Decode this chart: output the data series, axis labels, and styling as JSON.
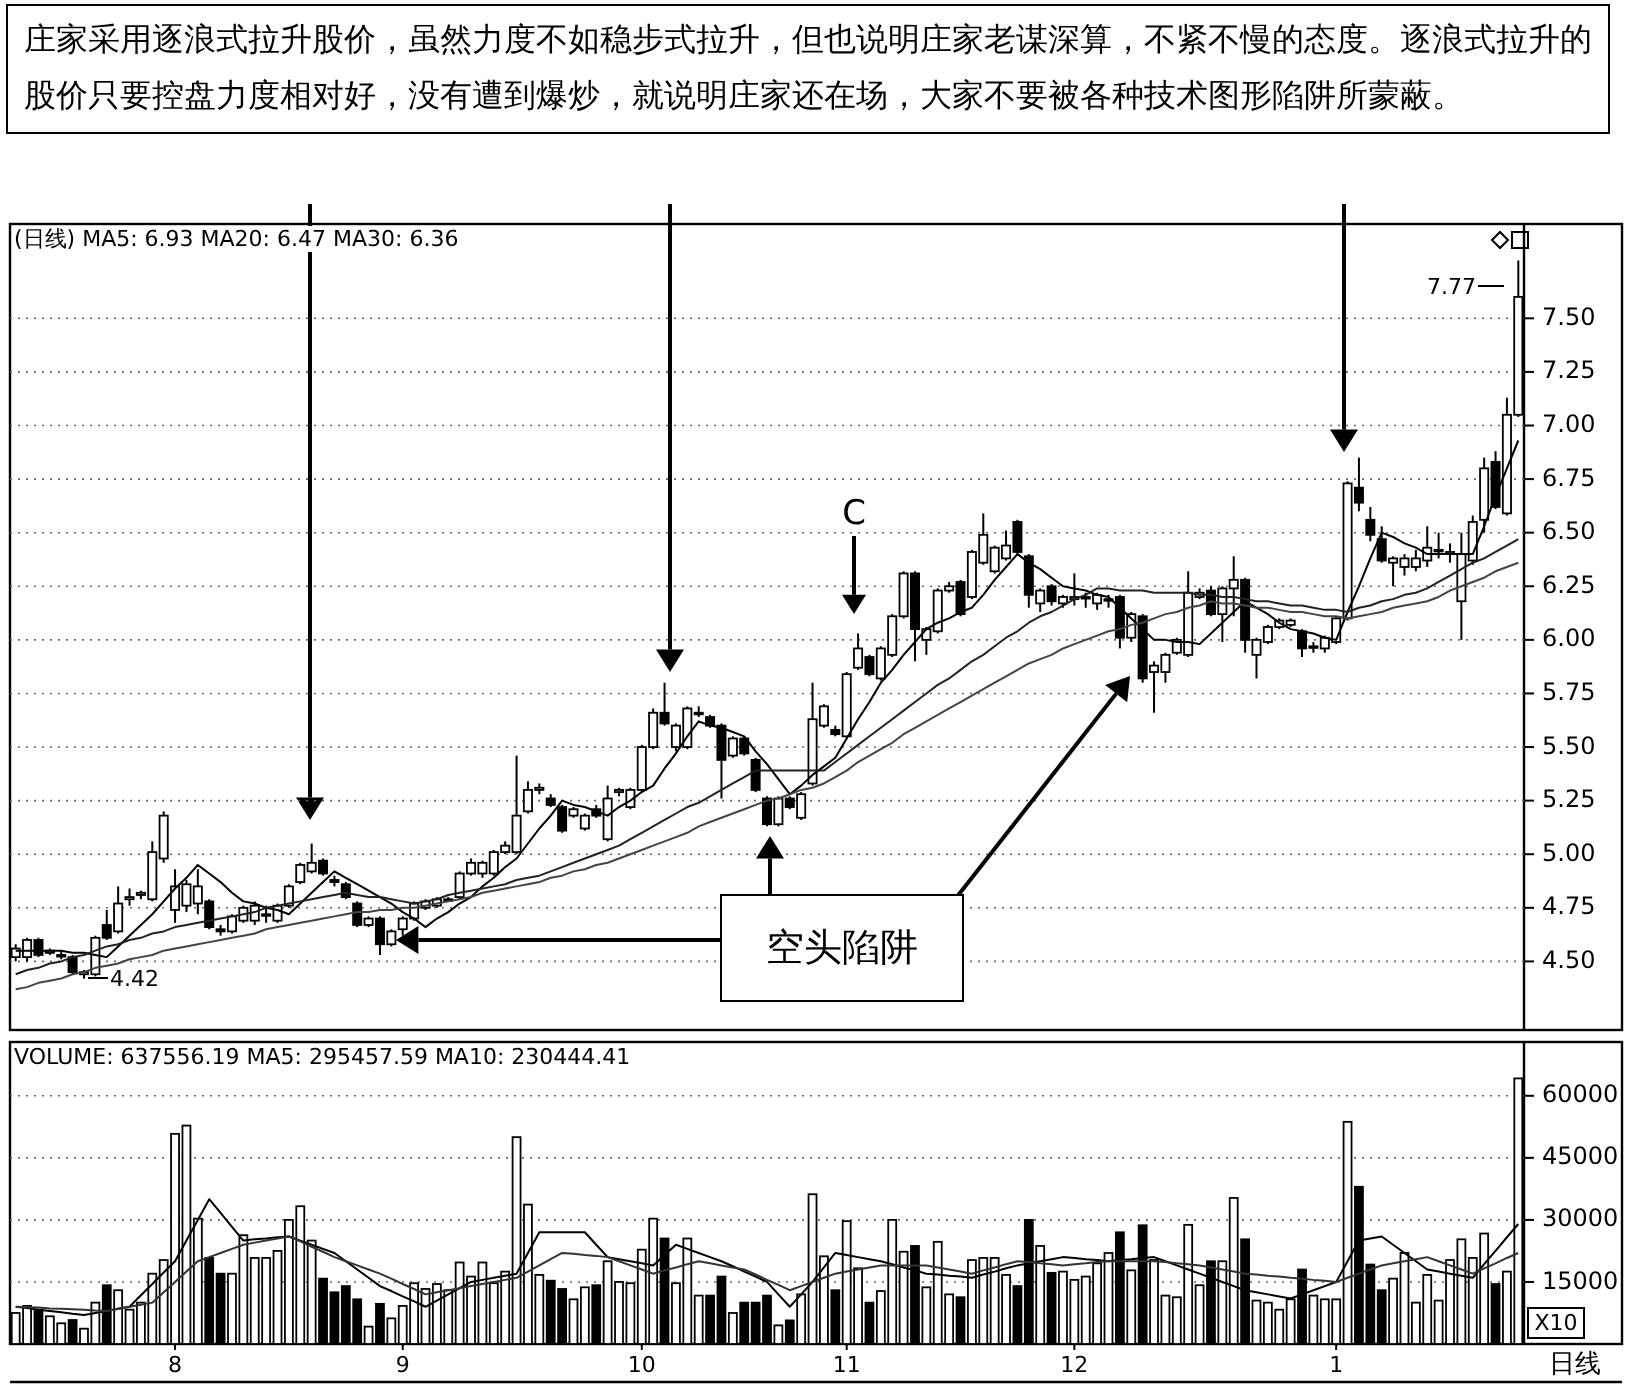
{
  "chart_data": [
    {
      "type": "candlestick",
      "title": "(日线) MA5: 6.93 MA20: 6.47 MA30: 6.36",
      "annotations": [
        "庄家采用逐浪式拉升股价，虽然力度不如稳步式拉升，但也说明庄家老谋深算，不紧不慢的态度。逐浪式拉升的股价只要控盘力度相对好，没有遭到爆炒，就说明庄家还在场，大家不要被各种技术图形陷阱所蒙蔽。",
        "C",
        "4.42",
        "7.77",
        "空头陷阱"
      ],
      "categories": [
        null,
        null,
        null,
        null,
        null,
        null,
        null,
        null,
        null,
        null,
        null,
        null,
        null,
        null,
        null,
        null,
        null,
        null,
        null,
        null,
        null,
        null,
        null,
        null,
        null,
        null,
        null,
        null,
        null,
        null,
        null,
        null,
        null,
        null,
        null,
        null,
        null,
        null,
        null,
        null,
        null,
        null,
        null,
        null,
        null,
        null,
        null,
        null,
        null,
        null,
        null,
        null,
        null,
        null,
        null,
        null,
        null,
        null,
        null,
        null,
        null,
        null,
        null,
        null,
        null,
        null,
        null,
        null,
        null,
        null,
        null,
        null,
        null,
        null,
        null,
        null,
        null,
        null,
        null,
        null,
        null,
        null,
        null,
        null,
        null,
        null,
        null,
        null,
        null,
        null,
        null,
        null,
        null,
        null,
        null,
        null,
        null,
        null,
        null,
        null,
        null,
        null,
        null,
        null,
        null,
        null,
        null,
        null,
        null,
        null,
        null,
        null,
        null,
        null,
        null,
        null,
        null,
        null,
        null,
        null,
        null,
        null,
        null,
        null,
        null,
        null,
        null,
        null,
        null,
        null,
        null,
        null,
        null
      ],
      "ohlc": [
        [
          4.52,
          4.58,
          4.5,
          4.56
        ],
        [
          4.52,
          4.61,
          4.5,
          4.6
        ],
        [
          4.6,
          4.61,
          4.52,
          4.53
        ],
        [
          4.54,
          4.56,
          4.53,
          4.55
        ],
        [
          4.53,
          4.55,
          4.51,
          4.53
        ],
        [
          4.52,
          4.53,
          4.44,
          4.45
        ],
        [
          4.44,
          4.46,
          4.42,
          4.45
        ],
        [
          4.44,
          4.62,
          4.43,
          4.61
        ],
        [
          4.67,
          4.74,
          4.6,
          4.61
        ],
        [
          4.64,
          4.85,
          4.63,
          4.77
        ],
        [
          4.79,
          4.84,
          4.76,
          4.8
        ],
        [
          4.81,
          4.83,
          4.79,
          4.82
        ],
        [
          4.79,
          5.06,
          4.78,
          5.01
        ],
        [
          4.98,
          5.2,
          4.96,
          5.18
        ],
        [
          4.74,
          4.93,
          4.68,
          4.85
        ],
        [
          4.76,
          4.88,
          4.73,
          4.86
        ],
        [
          4.77,
          4.93,
          4.72,
          4.85
        ],
        [
          4.78,
          4.79,
          4.65,
          4.66
        ],
        [
          4.65,
          4.67,
          4.62,
          4.64
        ],
        [
          4.64,
          4.72,
          4.63,
          4.71
        ],
        [
          4.69,
          4.76,
          4.68,
          4.75
        ],
        [
          4.69,
          4.78,
          4.67,
          4.76
        ],
        [
          4.72,
          4.76,
          4.68,
          4.72
        ],
        [
          4.69,
          4.77,
          4.68,
          4.76
        ],
        [
          4.76,
          4.86,
          4.75,
          4.85
        ],
        [
          4.87,
          4.96,
          4.86,
          4.95
        ],
        [
          4.92,
          5.05,
          4.91,
          4.96
        ],
        [
          4.97,
          4.98,
          4.9,
          4.91
        ],
        [
          4.88,
          4.9,
          4.85,
          4.87
        ],
        [
          4.86,
          4.87,
          4.79,
          4.8
        ],
        [
          4.77,
          4.78,
          4.66,
          4.67
        ],
        [
          4.67,
          4.71,
          4.66,
          4.7
        ],
        [
          4.7,
          4.71,
          4.53,
          4.58
        ],
        [
          4.58,
          4.65,
          4.57,
          4.64
        ],
        [
          4.65,
          4.71,
          4.62,
          4.7
        ],
        [
          4.7,
          4.78,
          4.69,
          4.77
        ],
        [
          4.75,
          4.79,
          4.74,
          4.78
        ],
        [
          4.76,
          4.8,
          4.75,
          4.79
        ],
        [
          4.79,
          4.8,
          4.78,
          4.79
        ],
        [
          4.8,
          4.92,
          4.79,
          4.91
        ],
        [
          4.91,
          4.98,
          4.9,
          4.96
        ],
        [
          4.91,
          4.97,
          4.89,
          4.96
        ],
        [
          4.91,
          5.02,
          4.9,
          5.01
        ],
        [
          5.01,
          5.06,
          5.0,
          5.04
        ],
        [
          5.01,
          5.46,
          5.0,
          5.18
        ],
        [
          5.2,
          5.34,
          5.19,
          5.3
        ],
        [
          5.3,
          5.33,
          5.28,
          5.31
        ],
        [
          5.26,
          5.28,
          5.22,
          5.23
        ],
        [
          5.22,
          5.23,
          5.1,
          5.11
        ],
        [
          5.18,
          5.22,
          5.17,
          5.21
        ],
        [
          5.12,
          5.19,
          5.11,
          5.18
        ],
        [
          5.21,
          5.23,
          5.17,
          5.18
        ],
        [
          5.07,
          5.32,
          5.06,
          5.26
        ],
        [
          5.29,
          5.31,
          5.27,
          5.3
        ],
        [
          5.22,
          5.31,
          5.21,
          5.3
        ],
        [
          5.3,
          5.51,
          5.29,
          5.5
        ],
        [
          5.5,
          5.68,
          5.49,
          5.66
        ],
        [
          5.66,
          5.8,
          5.6,
          5.61
        ],
        [
          5.5,
          5.61,
          5.48,
          5.6
        ],
        [
          5.5,
          5.69,
          5.49,
          5.68
        ],
        [
          5.66,
          5.69,
          5.64,
          5.66
        ],
        [
          5.64,
          5.65,
          5.59,
          5.6
        ],
        [
          5.6,
          5.61,
          5.26,
          5.44
        ],
        [
          5.46,
          5.55,
          5.45,
          5.54
        ],
        [
          5.54,
          5.55,
          5.46,
          5.47
        ],
        [
          5.44,
          5.45,
          5.29,
          5.3
        ],
        [
          5.26,
          5.27,
          5.13,
          5.14
        ],
        [
          5.14,
          5.27,
          5.13,
          5.26
        ],
        [
          5.26,
          5.27,
          5.21,
          5.22
        ],
        [
          5.17,
          5.29,
          5.16,
          5.28
        ],
        [
          5.33,
          5.8,
          5.32,
          5.63
        ],
        [
          5.6,
          5.7,
          5.59,
          5.69
        ],
        [
          5.58,
          5.6,
          5.55,
          5.56
        ],
        [
          5.55,
          5.85,
          5.54,
          5.84
        ],
        [
          5.87,
          6.03,
          5.86,
          5.96
        ],
        [
          5.92,
          5.93,
          5.83,
          5.84
        ],
        [
          5.82,
          5.97,
          5.81,
          5.96
        ],
        [
          5.93,
          6.12,
          5.92,
          6.11
        ],
        [
          6.11,
          6.32,
          6.1,
          6.31
        ],
        [
          6.31,
          6.32,
          5.9,
          6.05
        ],
        [
          6.0,
          6.06,
          5.93,
          6.05
        ],
        [
          6.04,
          6.24,
          6.03,
          6.23
        ],
        [
          6.23,
          6.27,
          6.22,
          6.25
        ],
        [
          6.27,
          6.28,
          6.11,
          6.12
        ],
        [
          6.2,
          6.42,
          6.19,
          6.41
        ],
        [
          6.36,
          6.59,
          6.35,
          6.49
        ],
        [
          6.32,
          6.44,
          6.31,
          6.43
        ],
        [
          6.38,
          6.51,
          6.37,
          6.44
        ],
        [
          6.55,
          6.56,
          6.4,
          6.41
        ],
        [
          6.39,
          6.4,
          6.15,
          6.21
        ],
        [
          6.17,
          6.24,
          6.13,
          6.23
        ],
        [
          6.25,
          6.26,
          6.16,
          6.18
        ],
        [
          6.17,
          6.21,
          6.15,
          6.2
        ],
        [
          6.19,
          6.31,
          6.16,
          6.2
        ],
        [
          6.2,
          6.22,
          6.15,
          6.2
        ],
        [
          6.17,
          6.22,
          6.14,
          6.21
        ],
        [
          6.19,
          6.21,
          6.15,
          6.19
        ],
        [
          6.2,
          6.21,
          5.96,
          6.01
        ],
        [
          6.01,
          6.13,
          5.99,
          6.12
        ],
        [
          6.11,
          6.12,
          5.8,
          5.82
        ],
        [
          5.85,
          5.9,
          5.66,
          5.88
        ],
        [
          5.85,
          5.94,
          5.8,
          5.93
        ],
        [
          5.94,
          6.01,
          5.93,
          6.0
        ],
        [
          5.93,
          6.32,
          5.92,
          6.22
        ],
        [
          6.2,
          6.24,
          6.19,
          6.22
        ],
        [
          6.23,
          6.25,
          6.11,
          6.12
        ],
        [
          6.12,
          6.25,
          5.99,
          6.24
        ],
        [
          6.24,
          6.39,
          6.11,
          6.28
        ],
        [
          6.28,
          6.29,
          5.94,
          6.0
        ],
        [
          5.93,
          6.01,
          5.82,
          6.0
        ],
        [
          5.99,
          6.07,
          5.98,
          6.06
        ],
        [
          6.06,
          6.1,
          6.05,
          6.09
        ],
        [
          6.07,
          6.1,
          6.06,
          6.09
        ],
        [
          6.04,
          6.05,
          5.92,
          5.96
        ],
        [
          5.97,
          5.99,
          5.94,
          5.97
        ],
        [
          5.96,
          6.02,
          5.94,
          6.01
        ],
        [
          5.99,
          6.11,
          5.98,
          6.1
        ],
        [
          6.1,
          6.74,
          6.09,
          6.73
        ],
        [
          6.71,
          6.85,
          6.6,
          6.64
        ],
        [
          6.56,
          6.62,
          6.46,
          6.49
        ],
        [
          6.47,
          6.53,
          6.36,
          6.37
        ],
        [
          6.36,
          6.39,
          6.25,
          6.38
        ],
        [
          6.34,
          6.4,
          6.3,
          6.38
        ],
        [
          6.34,
          6.42,
          6.32,
          6.38
        ],
        [
          6.37,
          6.53,
          6.34,
          6.43
        ],
        [
          6.42,
          6.5,
          6.38,
          6.42
        ],
        [
          6.4,
          6.45,
          6.36,
          6.41
        ],
        [
          6.18,
          6.5,
          6.0,
          6.4
        ],
        [
          6.37,
          6.58,
          6.35,
          6.55
        ],
        [
          6.56,
          6.85,
          6.5,
          6.8
        ],
        [
          6.83,
          6.88,
          6.61,
          6.62
        ],
        [
          6.59,
          7.13,
          6.58,
          7.05
        ],
        [
          7.05,
          7.77,
          7.04,
          7.6
        ]
      ],
      "series": [
        {
          "type": "line",
          "color": "#000000",
          "values": [
            4.55,
            4.55,
            4.55,
            4.55,
            4.55,
            4.54,
            4.54,
            4.53,
            4.52,
            4.57,
            4.62,
            4.67,
            4.72,
            4.78,
            4.84,
            4.89,
            4.95,
            4.91,
            4.87,
            4.82,
            4.78,
            4.77,
            4.75,
            4.74,
            4.72,
            4.77,
            4.82,
            4.87,
            4.92,
            4.89,
            4.86,
            4.83,
            4.8,
            4.77,
            4.73,
            4.7,
            4.66,
            4.7,
            4.73,
            4.77,
            4.8,
            4.85,
            4.89,
            4.94,
            4.98,
            5.05,
            5.12,
            5.18,
            5.25,
            5.23,
            5.22,
            5.2,
            5.18,
            5.22,
            5.25,
            5.29,
            5.32,
            5.4,
            5.47,
            5.55,
            5.62,
            5.6,
            5.59,
            5.57,
            5.55,
            5.48,
            5.42,
            5.35,
            5.28,
            5.32,
            5.37,
            5.41,
            5.45,
            5.54,
            5.63,
            5.71,
            5.8,
            5.86,
            5.93,
            5.99,
            6.05,
            6.08,
            6.1,
            6.13,
            6.15,
            6.21,
            6.28,
            6.34,
            6.4,
            6.36,
            6.33,
            6.29,
            6.25,
            6.24,
            6.23,
            6.21,
            6.2,
            6.15,
            6.1,
            6.05,
            6.0,
            6.0,
            5.99,
            5.99,
            5.98,
            6.03,
            6.08,
            6.13,
            6.18,
            6.15,
            6.12,
            6.08,
            6.05,
            6.04,
            6.03,
            6.01,
            6.0,
            6.13,
            6.25,
            6.38,
            6.5,
            6.48,
            6.45,
            6.43,
            6.4,
            6.4,
            6.4,
            6.4,
            6.4,
            6.53,
            6.67,
            6.8,
            6.93
          ]
        },
        {
          "type": "line",
          "color": "#222222",
          "values": [
            4.44,
            4.46,
            4.47,
            4.49,
            4.5,
            4.52,
            4.53,
            4.55,
            4.57,
            4.58,
            4.6,
            4.61,
            4.63,
            4.64,
            4.66,
            4.67,
            4.68,
            4.69,
            4.7,
            4.71,
            4.72,
            4.73,
            4.75,
            4.76,
            4.77,
            4.78,
            4.79,
            4.8,
            4.81,
            4.82,
            4.81,
            4.8,
            4.8,
            4.79,
            4.78,
            4.77,
            4.78,
            4.79,
            4.81,
            4.82,
            4.83,
            4.84,
            4.85,
            4.86,
            4.88,
            4.89,
            4.9,
            4.92,
            4.94,
            4.96,
            4.98,
            5.0,
            5.02,
            5.04,
            5.07,
            5.1,
            5.13,
            5.16,
            5.19,
            5.22,
            5.24,
            5.27,
            5.3,
            5.33,
            5.36,
            5.39,
            5.39,
            5.39,
            5.39,
            5.39,
            5.39,
            5.39,
            5.43,
            5.47,
            5.51,
            5.55,
            5.59,
            5.63,
            5.67,
            5.71,
            5.75,
            5.79,
            5.82,
            5.86,
            5.9,
            5.93,
            5.97,
            6.01,
            6.04,
            6.08,
            6.11,
            6.13,
            6.16,
            6.19,
            6.21,
            6.24,
            6.24,
            6.23,
            6.23,
            6.23,
            6.22,
            6.22,
            6.22,
            6.22,
            6.21,
            6.21,
            6.2,
            6.2,
            6.19,
            6.18,
            6.18,
            6.17,
            6.16,
            6.16,
            6.15,
            6.14,
            6.14,
            6.13,
            6.15,
            6.16,
            6.18,
            6.19,
            6.21,
            6.22,
            6.24,
            6.27,
            6.3,
            6.33,
            6.36,
            6.38,
            6.41,
            6.44,
            6.47
          ]
        },
        {
          "type": "line",
          "color": "#444444",
          "values": [
            4.37,
            4.38,
            4.4,
            4.41,
            4.42,
            4.44,
            4.45,
            4.47,
            4.48,
            4.49,
            4.51,
            4.52,
            4.53,
            4.55,
            4.56,
            4.57,
            4.58,
            4.59,
            4.6,
            4.61,
            4.62,
            4.63,
            4.65,
            4.66,
            4.67,
            4.68,
            4.69,
            4.7,
            4.71,
            4.72,
            4.73,
            4.73,
            4.74,
            4.74,
            4.75,
            4.75,
            4.76,
            4.77,
            4.78,
            4.79,
            4.8,
            4.82,
            4.83,
            4.84,
            4.85,
            4.86,
            4.87,
            4.89,
            4.9,
            4.92,
            4.93,
            4.95,
            4.96,
            4.98,
            5.0,
            5.02,
            5.04,
            5.06,
            5.08,
            5.1,
            5.13,
            5.15,
            5.17,
            5.19,
            5.21,
            5.23,
            5.25,
            5.26,
            5.28,
            5.3,
            5.31,
            5.33,
            5.36,
            5.39,
            5.43,
            5.46,
            5.49,
            5.52,
            5.56,
            5.59,
            5.62,
            5.65,
            5.68,
            5.71,
            5.74,
            5.77,
            5.8,
            5.83,
            5.86,
            5.89,
            5.91,
            5.93,
            5.96,
            5.98,
            6.0,
            6.02,
            6.04,
            6.05,
            6.07,
            6.08,
            6.1,
            6.12,
            6.13,
            6.15,
            6.16,
            6.18,
            6.17,
            6.17,
            6.16,
            6.15,
            6.15,
            6.14,
            6.13,
            6.13,
            6.12,
            6.11,
            6.11,
            6.1,
            6.11,
            6.12,
            6.13,
            6.15,
            6.16,
            6.17,
            6.18,
            6.2,
            6.23,
            6.25,
            6.27,
            6.29,
            6.32,
            6.34,
            6.36
          ]
        }
      ],
      "ylim": [
        4.18,
        7.94
      ],
      "yticks": [
        {
          "value": 4.5,
          "label": "4.50"
        },
        {
          "value": 4.75,
          "label": "4.75"
        },
        {
          "value": 5.0,
          "label": "5.00"
        },
        {
          "value": 5.25,
          "label": "5.25"
        },
        {
          "value": 5.5,
          "label": "5.50"
        },
        {
          "value": 5.75,
          "label": "5.75"
        },
        {
          "value": 6.0,
          "label": "6.00"
        },
        {
          "value": 6.25,
          "label": "6.25"
        },
        {
          "value": 6.5,
          "label": "6.50"
        },
        {
          "value": 6.75,
          "label": "6.75"
        },
        {
          "value": 7.0,
          "label": "7.00"
        },
        {
          "value": 7.25,
          "label": "7.25"
        },
        {
          "value": 7.5,
          "label": "7.50"
        }
      ],
      "tick_labels": "y",
      "grid": "y"
    },
    {
      "type": "bar",
      "title": "VOLUME: 637556.19 MA5: 295457.59 MA10: 230444.41",
      "annotations": [
        "X10",
        "日线"
      ],
      "categories": [
        null,
        null,
        null,
        null,
        null,
        null,
        null,
        null,
        null,
        null,
        null,
        null,
        null,
        null,
        "8",
        null,
        null,
        null,
        null,
        null,
        null,
        null,
        null,
        null,
        null,
        null,
        null,
        null,
        null,
        null,
        null,
        null,
        null,
        null,
        "9",
        null,
        null,
        null,
        null,
        null,
        null,
        null,
        null,
        null,
        null,
        null,
        null,
        null,
        null,
        null,
        null,
        null,
        null,
        null,
        null,
        "10",
        null,
        null,
        null,
        null,
        null,
        null,
        null,
        null,
        null,
        null,
        null,
        null,
        null,
        null,
        null,
        null,
        null,
        "11",
        null,
        null,
        null,
        null,
        null,
        null,
        null,
        null,
        null,
        null,
        null,
        null,
        null,
        null,
        null,
        null,
        null,
        null,
        null,
        "12",
        null,
        null,
        null,
        null,
        null,
        null,
        null,
        null,
        null,
        null,
        null,
        null,
        null,
        null,
        null,
        null,
        null,
        null,
        null,
        null,
        null,
        null,
        "1",
        null,
        null,
        null,
        null,
        null,
        null,
        null,
        null,
        null,
        null,
        null,
        null,
        null,
        null,
        null,
        null
      ],
      "series": [
        {
          "values": [
            7500,
            9200,
            8300,
            6700,
            5000,
            5800,
            3700,
            10000,
            14200,
            13000,
            8300,
            10000,
            17000,
            20300,
            50800,
            52800,
            30300,
            20800,
            17000,
            17000,
            26300,
            20800,
            20800,
            22500,
            30000,
            33300,
            25000,
            15800,
            12500,
            14000,
            10800,
            4200,
            9700,
            6200,
            9200,
            14700,
            13300,
            14500,
            13000,
            19700,
            16300,
            19700,
            14700,
            17500,
            50000,
            33700,
            16700,
            15300,
            13300,
            10800,
            13700,
            14200,
            20000,
            15000,
            14700,
            22800,
            30300,
            25500,
            14700,
            25500,
            11700,
            11700,
            16300,
            7500,
            10000,
            10000,
            11700,
            4500,
            5700,
            12000,
            36200,
            21200,
            13000,
            29700,
            18300,
            10000,
            12800,
            30000,
            22300,
            23700,
            13700,
            24700,
            12000,
            11300,
            20300,
            20800,
            20800,
            16700,
            14000,
            30000,
            23700,
            17200,
            17500,
            15500,
            16300,
            19500,
            22000,
            27000,
            17800,
            28700,
            20300,
            11700,
            11300,
            28800,
            14200,
            20000,
            20000,
            35300,
            25300,
            10500,
            10000,
            8300,
            10800,
            18000,
            11700,
            10800,
            10800,
            53700,
            38000,
            19200,
            13000,
            15800,
            22000,
            10000,
            16700,
            10500,
            20300,
            25300,
            20800,
            26700,
            14500,
            17500,
            64200
          ],
          "colors": [
            "#ffffff",
            "#ffffff",
            "#000000",
            "#ffffff",
            "#ffffff",
            "#000000",
            "#ffffff",
            "#ffffff",
            "#000000",
            "#ffffff",
            "#ffffff",
            "#ffffff",
            "#ffffff",
            "#ffffff",
            "#ffffff",
            "#ffffff",
            "#ffffff",
            "#000000",
            "#000000",
            "#ffffff",
            "#ffffff",
            "#ffffff",
            "#ffffff",
            "#ffffff",
            "#ffffff",
            "#ffffff",
            "#ffffff",
            "#000000",
            "#000000",
            "#000000",
            "#000000",
            "#ffffff",
            "#000000",
            "#ffffff",
            "#ffffff",
            "#ffffff",
            "#ffffff",
            "#ffffff",
            "#ffffff",
            "#ffffff",
            "#ffffff",
            "#ffffff",
            "#ffffff",
            "#ffffff",
            "#ffffff",
            "#ffffff",
            "#ffffff",
            "#000000",
            "#000000",
            "#ffffff",
            "#ffffff",
            "#000000",
            "#ffffff",
            "#ffffff",
            "#ffffff",
            "#ffffff",
            "#ffffff",
            "#000000",
            "#ffffff",
            "#ffffff",
            "#ffffff",
            "#000000",
            "#000000",
            "#ffffff",
            "#000000",
            "#000000",
            "#000000",
            "#ffffff",
            "#000000",
            "#ffffff",
            "#ffffff",
            "#ffffff",
            "#000000",
            "#ffffff",
            "#ffffff",
            "#000000",
            "#ffffff",
            "#ffffff",
            "#ffffff",
            "#000000",
            "#ffffff",
            "#ffffff",
            "#ffffff",
            "#000000",
            "#ffffff",
            "#ffffff",
            "#ffffff",
            "#ffffff",
            "#000000",
            "#000000",
            "#ffffff",
            "#000000",
            "#ffffff",
            "#ffffff",
            "#ffffff",
            "#ffffff",
            "#ffffff",
            "#000000",
            "#ffffff",
            "#000000",
            "#ffffff",
            "#ffffff",
            "#ffffff",
            "#ffffff",
            "#ffffff",
            "#000000",
            "#ffffff",
            "#ffffff",
            "#000000",
            "#ffffff",
            "#ffffff",
            "#ffffff",
            "#ffffff",
            "#000000",
            "#ffffff",
            "#ffffff",
            "#ffffff",
            "#ffffff",
            "#000000",
            "#000000",
            "#000000",
            "#ffffff",
            "#ffffff",
            "#ffffff",
            "#ffffff",
            "#ffffff",
            "#ffffff",
            "#ffffff",
            "#ffffff",
            "#ffffff",
            "#000000",
            "#ffffff",
            "#ffffff"
          ]
        },
        {
          "type": "line",
          "color": "#000000",
          "values": [
            9000,
            8700,
            8300,
            8000,
            7700,
            7300,
            7000,
            7500,
            8000,
            8500,
            9000,
            11800,
            14500,
            17300,
            20000,
            25000,
            30000,
            35000,
            31700,
            28300,
            25000,
            25300,
            25500,
            25800,
            26000,
            25000,
            24000,
            23000,
            22000,
            20000,
            18000,
            16000,
            14000,
            12800,
            11500,
            10300,
            9000,
            10500,
            12000,
            13500,
            15000,
            15500,
            16000,
            16500,
            17000,
            22000,
            27000,
            27000,
            27000,
            27000,
            27000,
            24000,
            21000,
            20500,
            20000,
            19500,
            19000,
            21500,
            24000,
            23000,
            22000,
            21000,
            20000,
            18800,
            17500,
            16300,
            15000,
            12000,
            9000,
            12000,
            15000,
            18500,
            22000,
            21500,
            21000,
            20500,
            20000,
            19300,
            18500,
            17800,
            17000,
            16800,
            16500,
            16300,
            16000,
            16800,
            17500,
            18300,
            19000,
            19500,
            20000,
            20500,
            21000,
            20800,
            20500,
            20300,
            20000,
            20300,
            20500,
            20800,
            21000,
            20000,
            19000,
            18000,
            17000,
            16000,
            15000,
            14000,
            13000,
            12500,
            12000,
            11500,
            11000,
            12000,
            13000,
            14000,
            15000,
            20000,
            25000,
            25500,
            26000,
            24000,
            22000,
            20000,
            18000,
            17500,
            17000,
            16500,
            16000,
            19300,
            22500,
            25800,
            29000
          ]
        },
        {
          "type": "line",
          "color": "#333333",
          "values": [
            9000,
            8900,
            8800,
            8600,
            8500,
            8400,
            8300,
            8100,
            8000,
            8500,
            9000,
            9500,
            10000,
            12500,
            15000,
            17500,
            20000,
            21000,
            22000,
            23000,
            24000,
            24500,
            25000,
            25500,
            26000,
            24800,
            23500,
            22300,
            21000,
            20000,
            19000,
            18000,
            17000,
            15800,
            14500,
            13300,
            12000,
            12500,
            13000,
            13500,
            14000,
            14500,
            15000,
            15500,
            16000,
            17500,
            19000,
            20500,
            22000,
            21800,
            21500,
            21300,
            21000,
            20000,
            19000,
            18000,
            17000,
            17800,
            18500,
            19300,
            20000,
            19500,
            19000,
            18500,
            18000,
            16800,
            15500,
            14300,
            13000,
            14000,
            15000,
            16000,
            17000,
            17500,
            18000,
            18500,
            19000,
            19000,
            19000,
            19000,
            19000,
            18500,
            18000,
            17500,
            17000,
            17800,
            18500,
            19300,
            20000,
            19800,
            19500,
            19300,
            19000,
            19300,
            19500,
            19800,
            20000,
            20000,
            20000,
            20000,
            20000,
            19800,
            19500,
            19300,
            19000,
            18500,
            18000,
            17500,
            17000,
            16800,
            16500,
            16300,
            16000,
            15800,
            15500,
            15300,
            15000,
            16000,
            17000,
            18000,
            19000,
            19500,
            20000,
            20500,
            21000,
            20000,
            19000,
            18000,
            17000,
            18300,
            19500,
            20800,
            22000
          ]
        }
      ],
      "ylim": [
        0,
        73000
      ],
      "yticks": [
        15000,
        30000,
        45000,
        60000
      ],
      "grid": "y"
    }
  ]
}
